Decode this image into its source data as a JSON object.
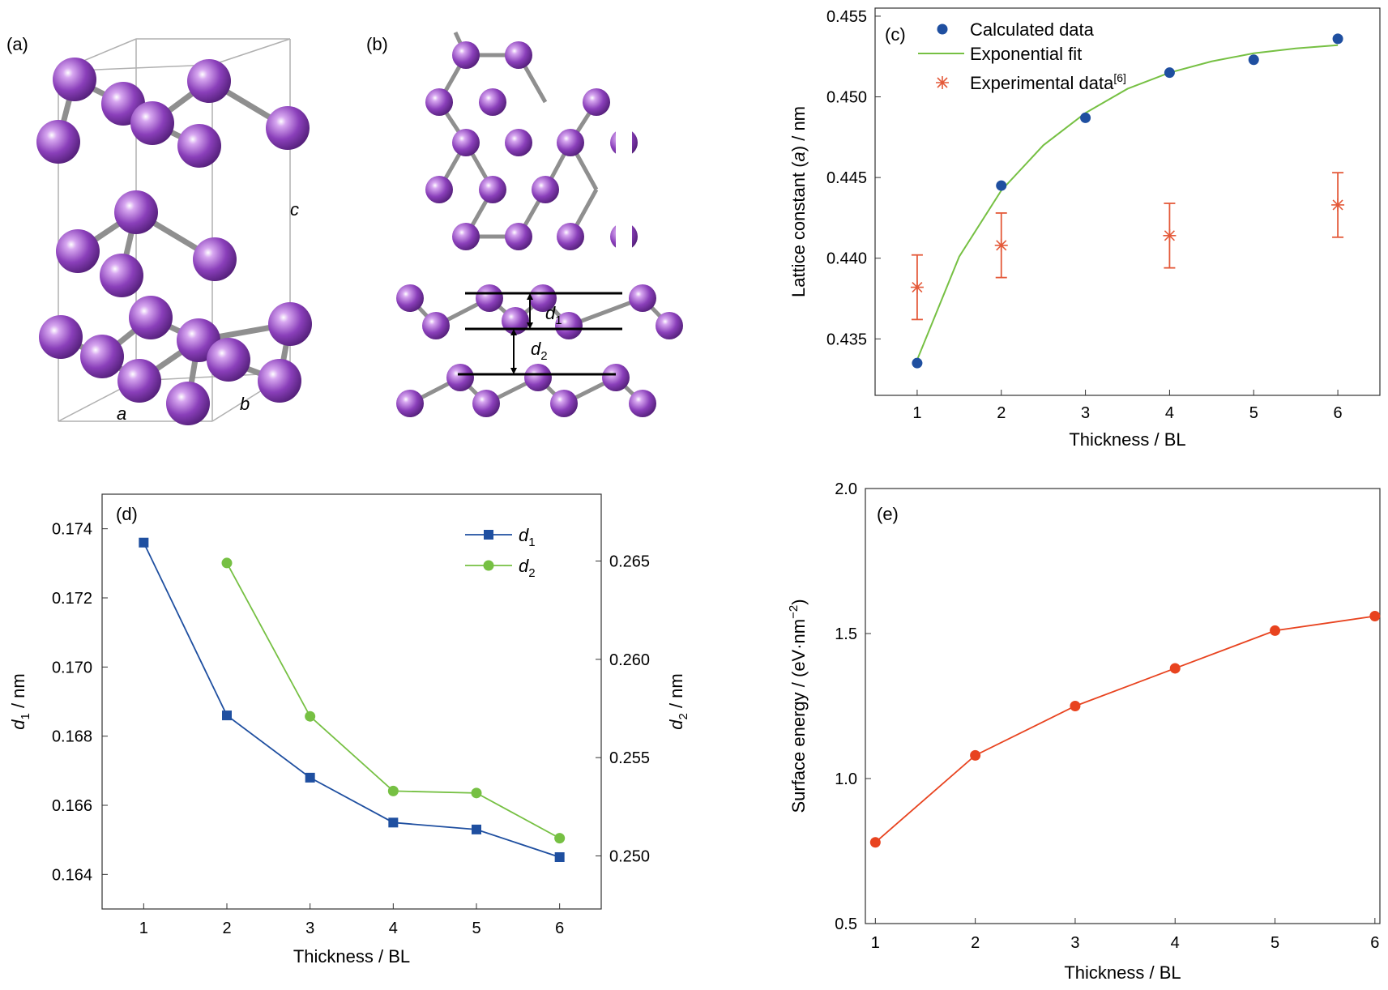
{
  "panels": {
    "a": {
      "tag": "(a)",
      "axis_a": "a",
      "axis_b": "b",
      "axis_c": "c"
    },
    "b": {
      "tag": "(b)",
      "d1_sym": "d",
      "d1_sub": "1",
      "d2_sym": "d",
      "d2_sub": "2"
    }
  },
  "colors": {
    "atom": "#7b3fa8",
    "bond": "#8f8f8f",
    "calc": "#1f4fa0",
    "fit": "#76c043",
    "exp": "#e45a3a",
    "d1": "#1f4fa0",
    "d2": "#76c043",
    "surface": "#e8431f"
  },
  "chart_data": [
    {
      "id": "c",
      "tag": "(c)",
      "type": "scatter",
      "xlabel": "Thickness / BL",
      "ylabel_pre": "Lattice constant (",
      "ylabel_ital": "a",
      "ylabel_post": ") / nm",
      "xlim": [
        0.5,
        6.5
      ],
      "ylim": [
        0.4315,
        0.4555
      ],
      "xticks": [
        1,
        2,
        3,
        4,
        5,
        6
      ],
      "yticks": [
        "0.435",
        "0.440",
        "0.445",
        "0.450",
        "0.455"
      ],
      "legend_position": "top-left",
      "series": [
        {
          "name": "Calculated data",
          "x": [
            1,
            2,
            3,
            4,
            5,
            6
          ],
          "y": [
            0.4335,
            0.4445,
            0.4487,
            0.4515,
            0.4523,
            0.4536
          ]
        },
        {
          "name": "Exponential fit",
          "x": [
            1,
            1.5,
            2,
            2.5,
            3,
            3.5,
            4,
            4.5,
            5,
            5.5,
            6
          ],
          "y": [
            0.4337,
            0.4401,
            0.4442,
            0.447,
            0.449,
            0.4505,
            0.4515,
            0.4522,
            0.4527,
            0.453,
            0.4532
          ]
        },
        {
          "name": "Experimental data",
          "name_sup": "[6]",
          "x": [
            1,
            2,
            4,
            6
          ],
          "y": [
            0.4382,
            0.4408,
            0.4414,
            0.4433
          ],
          "err": [
            0.002,
            0.002,
            0.002,
            0.002
          ]
        }
      ]
    },
    {
      "id": "d",
      "tag": "(d)",
      "type": "line",
      "xlabel": "Thickness / BL",
      "ylabel_left_sym": "d",
      "ylabel_left_sub": "1",
      "ylabel_left_unit": " / nm",
      "ylabel_right_sym": "d",
      "ylabel_right_sub": "2",
      "ylabel_right_unit": " / nm",
      "xlim": [
        0.5,
        6.5
      ],
      "ylim_left": [
        0.163,
        0.175
      ],
      "ylim_right": [
        0.2473,
        0.2684
      ],
      "xticks": [
        1,
        2,
        3,
        4,
        5,
        6
      ],
      "yticks_left": [
        "0.164",
        "0.166",
        "0.168",
        "0.170",
        "0.172",
        "0.174"
      ],
      "yticks_right": [
        "0.250",
        "0.255",
        "0.260",
        "0.265"
      ],
      "legend_position": "top-right",
      "series": [
        {
          "sym": "d",
          "sub": "1",
          "axis": "left",
          "x": [
            1,
            2,
            3,
            4,
            5,
            6
          ],
          "y": [
            0.1736,
            0.1686,
            0.1668,
            0.1655,
            0.1653,
            0.1645
          ]
        },
        {
          "sym": "d",
          "sub": "2",
          "axis": "right",
          "x": [
            2,
            3,
            4,
            5,
            6
          ],
          "y": [
            0.2649,
            0.2571,
            0.2533,
            0.2532,
            0.2509
          ]
        }
      ]
    },
    {
      "id": "e",
      "tag": "(e)",
      "type": "line",
      "xlabel": "Thickness / BL",
      "ylabel_pre": "Surface energy / (eV·nm",
      "ylabel_sup": "−2",
      "ylabel_post": ")",
      "xlim": [
        0.9,
        6.05
      ],
      "ylim": [
        0.5,
        2.0
      ],
      "xticks": [
        1,
        2,
        3,
        4,
        5,
        6
      ],
      "yticks": [
        "0.5",
        "1.0",
        "1.5",
        "2.0"
      ],
      "series": [
        {
          "x": [
            1,
            2,
            3,
            4,
            5,
            6
          ],
          "y": [
            0.78,
            1.08,
            1.25,
            1.38,
            1.51,
            1.56
          ]
        }
      ]
    }
  ]
}
